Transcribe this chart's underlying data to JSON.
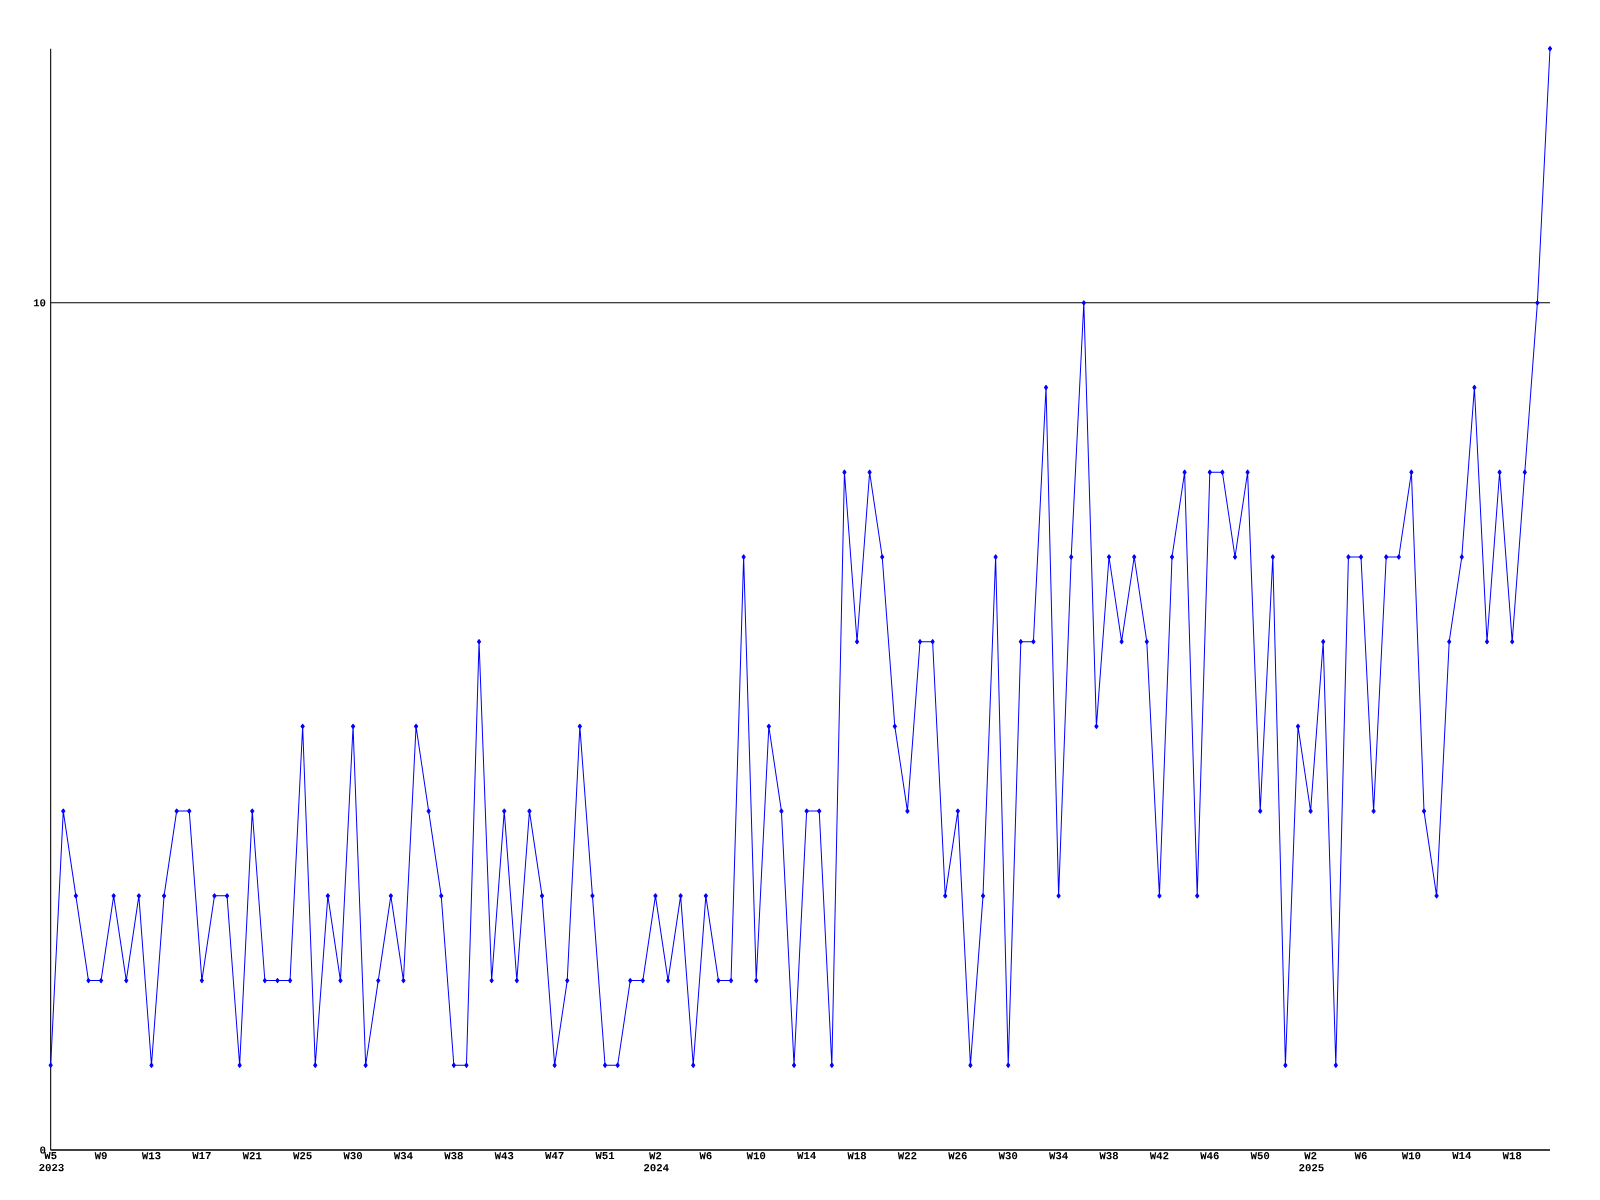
{
  "chart_data": {
    "type": "line",
    "categories": [
      "W5 2023",
      null,
      null,
      null,
      "W9",
      null,
      null,
      null,
      "W13",
      null,
      null,
      null,
      "W17",
      null,
      null,
      null,
      "W21",
      null,
      null,
      null,
      "W25",
      null,
      null,
      null,
      "W30",
      null,
      null,
      null,
      "W34",
      null,
      null,
      null,
      "W38",
      null,
      null,
      null,
      "W43",
      null,
      null,
      null,
      "W47",
      null,
      null,
      null,
      "W51",
      null,
      null,
      null,
      "W2 2024",
      null,
      null,
      null,
      "W6",
      null,
      null,
      null,
      "W10",
      null,
      null,
      null,
      "W14",
      null,
      null,
      null,
      "W18",
      null,
      null,
      null,
      "W22",
      null,
      null,
      null,
      "W26",
      null,
      null,
      null,
      "W30",
      null,
      null,
      null,
      "W34",
      null,
      null,
      null,
      "W38",
      null,
      null,
      null,
      "W42",
      null,
      null,
      null,
      "W46",
      null,
      null,
      null,
      "W50",
      null,
      null,
      null,
      "W2 2025",
      null,
      null,
      null,
      "W6",
      null,
      null,
      null,
      "W10",
      null,
      null,
      null,
      "W14",
      null,
      null,
      null,
      "W18",
      null,
      null,
      null
    ],
    "series": [
      {
        "color": "#0000ff",
        "values": [
          1,
          4,
          3,
          2,
          2,
          3,
          2,
          3,
          1,
          3,
          4,
          4,
          2,
          3,
          3,
          1,
          4,
          2,
          2,
          2,
          5,
          1,
          3,
          2,
          5,
          1,
          2,
          3,
          2,
          5,
          4,
          3,
          1,
          1,
          6,
          2,
          4,
          2,
          4,
          3,
          1,
          2,
          5,
          3,
          1,
          1,
          2,
          2,
          3,
          2,
          3,
          1,
          3,
          2,
          2,
          7,
          2,
          5,
          4,
          1,
          4,
          4,
          1,
          8,
          6,
          8,
          7,
          5,
          4,
          6,
          6,
          3,
          4,
          1,
          3,
          7,
          1,
          6,
          6,
          9,
          3,
          7,
          10,
          5,
          7,
          6,
          7,
          6,
          3,
          7,
          8,
          3,
          8,
          8,
          7,
          8,
          4,
          7,
          1,
          5,
          4,
          6,
          1,
          7,
          7,
          4,
          7,
          7,
          8,
          4,
          3,
          6,
          7,
          9,
          6,
          8,
          6,
          8,
          10,
          13
        ]
      }
    ],
    "ylim": [
      0,
      13
    ],
    "yticks": [
      0,
      10
    ],
    "grid": "y",
    "marker": "diamond"
  }
}
